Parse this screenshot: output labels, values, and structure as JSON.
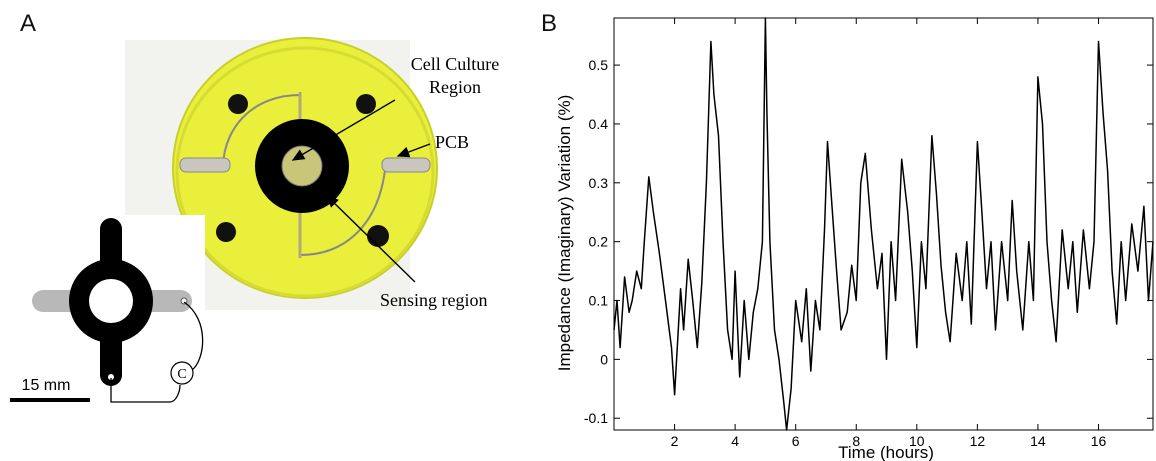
{
  "panels": {
    "a": "A",
    "b": "B"
  },
  "photo": {
    "labels": {
      "cell_culture": [
        "Cell Culture",
        "Region"
      ],
      "pcb": "PCB",
      "sensing": "Sensing region"
    },
    "scale_bar": "15 mm",
    "capacitor_symbol": "C",
    "colors": {
      "board": "#e9ef3a",
      "electrode": "#000000",
      "grey_electrode": "#b8b8b8"
    }
  },
  "chart_data": {
    "type": "line",
    "title": "",
    "xlabel": "Time (hours)",
    "ylabel": "Impedance (Imaginary) Variation (%)",
    "xlim": [
      0,
      17.8
    ],
    "ylim": [
      -0.12,
      0.58
    ],
    "xticks": [
      2,
      4,
      6,
      8,
      10,
      12,
      14,
      16
    ],
    "yticks": [
      -0.1,
      0,
      0.1,
      0.2,
      0.3,
      0.4,
      0.5
    ],
    "ytick_labels": [
      "-0.1",
      "0",
      "0.1",
      "0.2",
      "0.3",
      "0.4",
      "0.5"
    ],
    "grid": false,
    "series": [
      {
        "color": "#000000",
        "x": [
          0,
          0.1,
          0.2,
          0.35,
          0.5,
          0.6,
          0.75,
          0.9,
          1.0,
          1.15,
          1.3,
          1.5,
          1.7,
          1.9,
          2.0,
          2.2,
          2.3,
          2.45,
          2.6,
          2.75,
          2.9,
          3.05,
          3.2,
          3.3,
          3.45,
          3.6,
          3.75,
          3.9,
          4.0,
          4.15,
          4.3,
          4.45,
          4.6,
          4.75,
          4.9,
          5.0,
          5.05,
          5.15,
          5.3,
          5.45,
          5.6,
          5.7,
          5.85,
          6.0,
          6.2,
          6.35,
          6.5,
          6.65,
          6.8,
          6.95,
          7.05,
          7.2,
          7.35,
          7.5,
          7.7,
          7.85,
          8.0,
          8.15,
          8.3,
          8.5,
          8.7,
          8.85,
          9.0,
          9.15,
          9.3,
          9.5,
          9.7,
          9.85,
          10.0,
          10.15,
          10.3,
          10.5,
          10.65,
          10.8,
          10.95,
          11.1,
          11.3,
          11.5,
          11.65,
          11.8,
          12.0,
          12.15,
          12.3,
          12.45,
          12.6,
          12.8,
          13.0,
          13.15,
          13.3,
          13.5,
          13.7,
          13.85,
          14.0,
          14.15,
          14.3,
          14.45,
          14.6,
          14.8,
          15.0,
          15.15,
          15.3,
          15.5,
          15.7,
          15.85,
          16.0,
          16.15,
          16.3,
          16.45,
          16.6,
          16.75,
          16.9,
          17.1,
          17.3,
          17.5,
          17.65,
          17.8
        ],
        "y": [
          0.05,
          0.1,
          0.02,
          0.14,
          0.08,
          0.1,
          0.15,
          0.12,
          0.2,
          0.31,
          0.25,
          0.18,
          0.1,
          0.02,
          -0.06,
          0.12,
          0.05,
          0.17,
          0.1,
          0.02,
          0.13,
          0.3,
          0.54,
          0.45,
          0.38,
          0.2,
          0.05,
          0.0,
          0.15,
          -0.03,
          0.1,
          0.0,
          0.08,
          0.12,
          0.2,
          0.58,
          0.42,
          0.2,
          0.05,
          0.0,
          -0.07,
          -0.12,
          -0.05,
          0.1,
          0.03,
          0.12,
          -0.02,
          0.1,
          0.05,
          0.22,
          0.37,
          0.26,
          0.15,
          0.05,
          0.08,
          0.16,
          0.1,
          0.3,
          0.35,
          0.22,
          0.12,
          0.18,
          0.0,
          0.2,
          0.1,
          0.34,
          0.25,
          0.15,
          0.02,
          0.2,
          0.12,
          0.38,
          0.28,
          0.16,
          0.08,
          0.03,
          0.18,
          0.1,
          0.2,
          0.06,
          0.37,
          0.25,
          0.12,
          0.2,
          0.05,
          0.2,
          0.1,
          0.27,
          0.15,
          0.05,
          0.2,
          0.1,
          0.48,
          0.4,
          0.2,
          0.1,
          0.03,
          0.22,
          0.12,
          0.2,
          0.08,
          0.22,
          0.12,
          0.2,
          0.54,
          0.42,
          0.32,
          0.15,
          0.06,
          0.2,
          0.1,
          0.23,
          0.15,
          0.26,
          0.1,
          0.2
        ]
      }
    ]
  }
}
